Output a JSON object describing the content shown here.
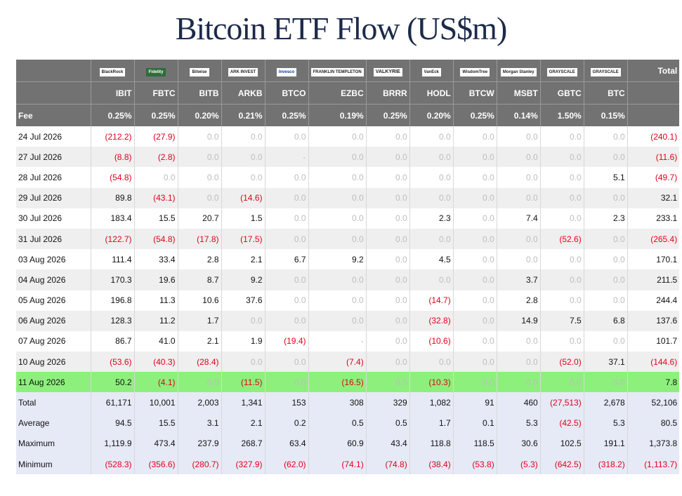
{
  "title": "Bitcoin ETF Flow (US$m)",
  "header": {
    "issuers": [
      "BlackRock",
      "Fidelity",
      "Bitwise",
      "ARK INVEST",
      "Invesco",
      "FRANKLIN TEMPLETON",
      "VALKYRIE",
      "VanEck",
      "WisdomTree",
      "Morgan Stanley",
      "GRAYSCALE",
      "GRAYSCALE"
    ],
    "total_label": "Total",
    "tickers": [
      "IBIT",
      "FBTC",
      "BITB",
      "ARKB",
      "BTCO",
      "EZBC",
      "BRRR",
      "HODL",
      "BTCW",
      "MSBT",
      "GBTC",
      "BTC"
    ],
    "fee_label": "Fee",
    "fees": [
      "0.25%",
      "0.25%",
      "0.20%",
      "0.21%",
      "0.25%",
      "0.19%",
      "0.25%",
      "0.20%",
      "0.25%",
      "0.14%",
      "1.50%",
      "0.15%"
    ]
  },
  "rows": [
    {
      "date": "24 Jul 2026",
      "values": [
        "(212.2)",
        "(27.9)",
        "0.0",
        "0.0",
        "0.0",
        "0.0",
        "0.0",
        "0.0",
        "0.0",
        "0.0",
        "0.0",
        "0.0",
        "(240.1)"
      ]
    },
    {
      "date": "27 Jul 2026",
      "values": [
        "(8.8)",
        "(2.8)",
        "0.0",
        "0.0",
        "-",
        "0.0",
        "0.0",
        "0.0",
        "0.0",
        "0.0",
        "0.0",
        "0.0",
        "(11.6)"
      ]
    },
    {
      "date": "28 Jul 2026",
      "values": [
        "(54.8)",
        "0.0",
        "0.0",
        "0.0",
        "0.0",
        "0.0",
        "0.0",
        "0.0",
        "0.0",
        "0.0",
        "0.0",
        "5.1",
        "(49.7)"
      ]
    },
    {
      "date": "29 Jul 2026",
      "values": [
        "89.8",
        "(43.1)",
        "0.0",
        "(14.6)",
        "0.0",
        "0.0",
        "0.0",
        "0.0",
        "0.0",
        "0.0",
        "0.0",
        "0.0",
        "32.1"
      ]
    },
    {
      "date": "30 Jul 2026",
      "values": [
        "183.4",
        "15.5",
        "20.7",
        "1.5",
        "0.0",
        "0.0",
        "0.0",
        "2.3",
        "0.0",
        "7.4",
        "0.0",
        "2.3",
        "233.1"
      ]
    },
    {
      "date": "31 Jul 2026",
      "values": [
        "(122.7)",
        "(54.8)",
        "(17.8)",
        "(17.5)",
        "0.0",
        "0.0",
        "0.0",
        "0.0",
        "0.0",
        "0.0",
        "(52.6)",
        "0.0",
        "(265.4)"
      ]
    },
    {
      "date": "03 Aug 2026",
      "values": [
        "111.4",
        "33.4",
        "2.8",
        "2.1",
        "6.7",
        "9.2",
        "0.0",
        "4.5",
        "0.0",
        "0.0",
        "0.0",
        "0.0",
        "170.1"
      ]
    },
    {
      "date": "04 Aug 2026",
      "values": [
        "170.3",
        "19.6",
        "8.7",
        "9.2",
        "0.0",
        "0.0",
        "0.0",
        "0.0",
        "0.0",
        "3.7",
        "0.0",
        "0.0",
        "211.5"
      ]
    },
    {
      "date": "05 Aug 2026",
      "values": [
        "196.8",
        "11.3",
        "10.6",
        "37.6",
        "0.0",
        "0.0",
        "0.0",
        "(14.7)",
        "0.0",
        "2.8",
        "0.0",
        "0.0",
        "244.4"
      ]
    },
    {
      "date": "06 Aug 2026",
      "values": [
        "128.3",
        "11.2",
        "1.7",
        "0.0",
        "0.0",
        "0.0",
        "0.0",
        "(32.8)",
        "0.0",
        "14.9",
        "7.5",
        "6.8",
        "137.6"
      ]
    },
    {
      "date": "07 Aug 2026",
      "values": [
        "86.7",
        "41.0",
        "2.1",
        "1.9",
        "(19.4)",
        "-",
        "0.0",
        "(10.6)",
        "0.0",
        "0.0",
        "0.0",
        "0.0",
        "101.7"
      ]
    },
    {
      "date": "10 Aug 2026",
      "values": [
        "(53.6)",
        "(40.3)",
        "(28.4)",
        "0.0",
        "0.0",
        "(7.4)",
        "0.0",
        "0.0",
        "0.0",
        "0.0",
        "(52.0)",
        "37.1",
        "(144.6)"
      ]
    },
    {
      "date": "11 Aug 2026",
      "values": [
        "50.2",
        "(4.1)",
        "0.0",
        "(11.5)",
        "0.0",
        "(16.5)",
        "0.0",
        "(10.3)",
        "0.0",
        "0.0",
        "0.0",
        "0.0",
        "7.8"
      ]
    }
  ],
  "stats": [
    {
      "label": "Total",
      "values": [
        "61,171",
        "10,001",
        "2,003",
        "1,341",
        "153",
        "308",
        "329",
        "1,082",
        "91",
        "460",
        "(27,513)",
        "2,678",
        "52,106"
      ]
    },
    {
      "label": "Average",
      "values": [
        "94.5",
        "15.5",
        "3.1",
        "2.1",
        "0.2",
        "0.5",
        "0.5",
        "1.7",
        "0.1",
        "5.3",
        "(42.5)",
        "5.3",
        "80.5"
      ]
    },
    {
      "label": "Maximum",
      "values": [
        "1,119.9",
        "473.4",
        "237.9",
        "268.7",
        "63.4",
        "60.9",
        "43.4",
        "118.8",
        "118.5",
        "30.6",
        "102.5",
        "191.1",
        "1,373.8"
      ]
    },
    {
      "label": "Minimum",
      "values": [
        "(528.3)",
        "(356.6)",
        "(280.7)",
        "(327.9)",
        "(62.0)",
        "(74.1)",
        "(74.8)",
        "(38.4)",
        "(53.8)",
        "(5.3)",
        "(642.5)",
        "(318.2)",
        "(1,113.7)"
      ]
    }
  ],
  "colors": {
    "header_bg": "#727272",
    "negative": "#e0001b",
    "highlight_row": "#8df07c",
    "stats_bg": "#e6eaf6",
    "title": "#1c2a4a"
  }
}
